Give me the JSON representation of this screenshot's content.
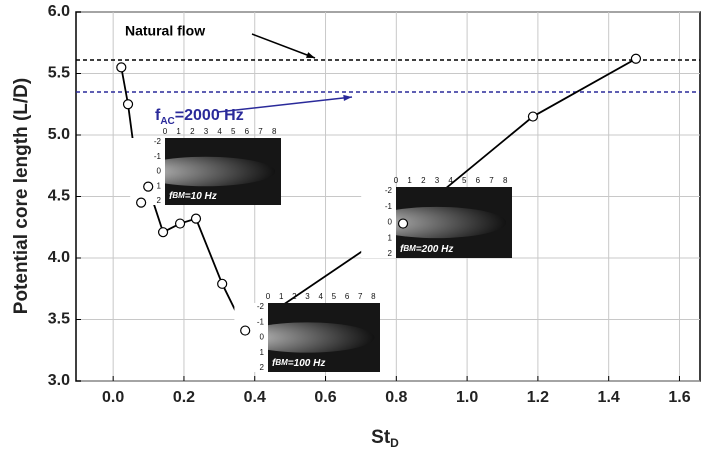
{
  "chart_data": {
    "type": "line",
    "y_label": "Potential core length (L/D)",
    "x_label": [
      "St",
      "D"
    ],
    "x": [
      0.023,
      0.042,
      0.079,
      0.099,
      0.141,
      0.189,
      0.234,
      0.308,
      0.373,
      0.819,
      1.186,
      1.477
    ],
    "series": [
      {
        "color": "#000000",
        "values": [
          5.55,
          5.25,
          4.45,
          4.58,
          4.21,
          4.28,
          4.32,
          3.79,
          3.41,
          4.28,
          5.15,
          5.62
        ]
      }
    ],
    "xlim": [
      -0.105,
      1.658
    ],
    "ylim": [
      3.0,
      6.0
    ],
    "xticks": [
      {
        "value": 0,
        "label": "0.0"
      },
      0.2,
      0.4,
      0.6,
      0.8,
      {
        "value": 1,
        "label": "1.0"
      },
      1.2,
      1.4,
      1.6
    ],
    "yticks": [
      {
        "value": 3,
        "label": "3.0"
      },
      3.5,
      {
        "value": 4,
        "label": "4.0"
      },
      4.5,
      {
        "value": 5,
        "label": "5.0"
      },
      5.5,
      {
        "value": 6,
        "label": "6.0"
      }
    ],
    "grid": true,
    "reference_lines": [
      {
        "label": "Natural flow",
        "value": 5.61,
        "color": "#000000"
      },
      {
        "label": [
          "f",
          "AC",
          "=2000 Hz"
        ],
        "value": 5.35,
        "color": "#2a2a9a"
      }
    ],
    "insets": [
      {
        "label": [
          "f",
          "BM",
          "=10 Hz"
        ]
      },
      {
        "label": [
          "f",
          "BM",
          "=100 Hz"
        ]
      },
      {
        "label": [
          "f",
          "BM",
          "=200 Hz"
        ]
      }
    ],
    "inset_xticks": [
      0,
      1,
      2,
      3,
      4,
      5,
      6,
      7,
      8
    ],
    "inset_yticks": [
      -2,
      -1,
      0,
      1,
      2
    ]
  }
}
